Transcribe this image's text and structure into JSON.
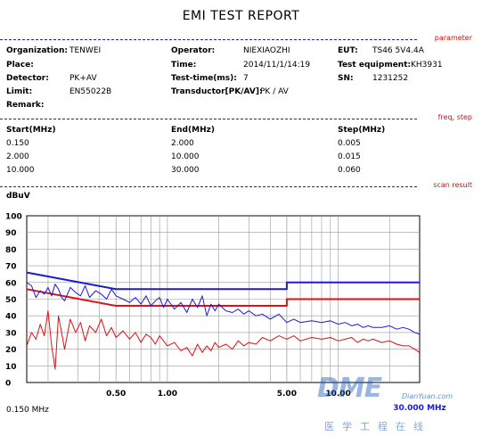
{
  "report": {
    "title": "EMI TEST REPORT"
  },
  "sections": {
    "parameter": "parameter",
    "freq_step": "freq, step",
    "scan_result": "scan result"
  },
  "params": {
    "organization_label": "Organization:",
    "organization_value": "TENWEI",
    "operator_label": "Operator:",
    "operator_value": "NIEXIAOZHI",
    "eut_label": "EUT:",
    "eut_value": "TS46 5V4.4A",
    "place_label": "Place:",
    "time_label": "Time:",
    "time_value": "2014/11/1/14:19",
    "test_equipment_label": "Test equipment:",
    "test_equipment_value": "KH3931",
    "detector_label": "Detector:",
    "detector_value": "PK+AV",
    "test_time_label": "Test-time(ms):",
    "test_time_value": "7",
    "sn_label": "SN:",
    "sn_value": "1231252",
    "limit_label": "Limit:",
    "limit_value": "EN55022B",
    "transductor_label": "Transductor[PK/AV]:",
    "transductor_value": "PK  /  AV",
    "remark_label": "Remark:"
  },
  "freq_table": {
    "headers": [
      "Start(MHz)",
      "End(MHz)",
      "Step(MHz)"
    ],
    "rows": [
      [
        "0.150",
        "2.000",
        "0.005"
      ],
      [
        "2.000",
        "10.000",
        "0.015"
      ],
      [
        "10.000",
        "30.000",
        "0.060"
      ]
    ]
  },
  "chart_data": {
    "type": "line",
    "ylabel": "dBuV",
    "x_scale": "log",
    "xlim": [
      0.15,
      30
    ],
    "ylim": [
      0,
      100
    ],
    "y_ticks": [
      "0",
      "10",
      "20",
      "30",
      "40",
      "50",
      "60",
      "70",
      "80",
      "90",
      "100"
    ],
    "x_tick_labels": [
      {
        "x": 0.5,
        "label": "0.50"
      },
      {
        "x": 1,
        "label": "1.00"
      },
      {
        "x": 5,
        "label": "5.00"
      },
      {
        "x": 10,
        "label": "10.00"
      }
    ],
    "x_start_label": "0.150 MHz",
    "x_end_label": "30.000 MHz",
    "grid": true,
    "series": [
      {
        "color": "#1a1ad6",
        "step": true,
        "width": 2,
        "x": [
          0.15,
          0.5,
          5,
          5,
          30
        ],
        "y": [
          66,
          56,
          56,
          60,
          60
        ]
      },
      {
        "color": "#e01010",
        "step": true,
        "width": 2,
        "x": [
          0.15,
          0.5,
          5,
          5,
          30
        ],
        "y": [
          56,
          46,
          46,
          50,
          50
        ]
      },
      {
        "color": "#1a1ad6",
        "width": 1,
        "x": [
          0.15,
          0.16,
          0.17,
          0.18,
          0.19,
          0.2,
          0.21,
          0.22,
          0.23,
          0.24,
          0.25,
          0.27,
          0.29,
          0.31,
          0.33,
          0.35,
          0.38,
          0.41,
          0.44,
          0.47,
          0.5,
          0.55,
          0.6,
          0.65,
          0.7,
          0.75,
          0.8,
          0.85,
          0.9,
          0.95,
          1.0,
          1.1,
          1.2,
          1.3,
          1.4,
          1.5,
          1.6,
          1.7,
          1.8,
          1.9,
          2.0,
          2.2,
          2.4,
          2.6,
          2.8,
          3.0,
          3.3,
          3.6,
          4.0,
          4.5,
          5.0,
          5.5,
          6.0,
          7.0,
          8.0,
          9.0,
          10.0,
          11,
          12,
          13,
          14,
          15,
          16,
          18,
          20,
          22,
          24,
          26,
          28,
          30
        ],
        "y": [
          60,
          58,
          51,
          55,
          53,
          57,
          52,
          59,
          56,
          51,
          49,
          57,
          54,
          52,
          58,
          51,
          55,
          53,
          50,
          56,
          52,
          50,
          48,
          51,
          47,
          52,
          46,
          49,
          51,
          45,
          50,
          44,
          48,
          42,
          50,
          45,
          52,
          40,
          47,
          43,
          47,
          43,
          42,
          44,
          41,
          43,
          40,
          41,
          38,
          41,
          36,
          38,
          36,
          37,
          36,
          37,
          35,
          36,
          34,
          35,
          33,
          34,
          33,
          33,
          34,
          32,
          33,
          32,
          30,
          29
        ]
      },
      {
        "color": "#e01010",
        "width": 1,
        "x": [
          0.15,
          0.16,
          0.17,
          0.18,
          0.19,
          0.2,
          0.21,
          0.22,
          0.23,
          0.24,
          0.25,
          0.27,
          0.29,
          0.31,
          0.33,
          0.35,
          0.38,
          0.41,
          0.44,
          0.47,
          0.5,
          0.55,
          0.6,
          0.65,
          0.7,
          0.75,
          0.8,
          0.85,
          0.9,
          0.95,
          1.0,
          1.1,
          1.2,
          1.3,
          1.4,
          1.5,
          1.6,
          1.7,
          1.8,
          1.9,
          2.0,
          2.2,
          2.4,
          2.6,
          2.8,
          3.0,
          3.3,
          3.6,
          4.0,
          4.5,
          5.0,
          5.5,
          6.0,
          7.0,
          8.0,
          9.0,
          10.0,
          11,
          12,
          13,
          14,
          15,
          16,
          18,
          20,
          22,
          24,
          26,
          28,
          30
        ],
        "y": [
          22,
          30,
          26,
          35,
          28,
          43,
          22,
          8,
          40,
          30,
          20,
          38,
          30,
          36,
          25,
          34,
          30,
          38,
          28,
          33,
          27,
          31,
          26,
          30,
          24,
          29,
          27,
          23,
          28,
          25,
          22,
          24,
          19,
          21,
          16,
          23,
          18,
          22,
          19,
          24,
          21,
          23,
          20,
          25,
          22,
          24,
          23,
          27,
          25,
          28,
          26,
          28,
          25,
          27,
          26,
          27,
          25,
          26,
          27,
          24,
          26,
          25,
          26,
          24,
          25,
          23,
          22,
          22,
          20,
          18
        ]
      }
    ]
  },
  "watermark": {
    "brand": "DME",
    "brand_sub": "DianYuan.com",
    "tagline": "医学工程在线"
  }
}
